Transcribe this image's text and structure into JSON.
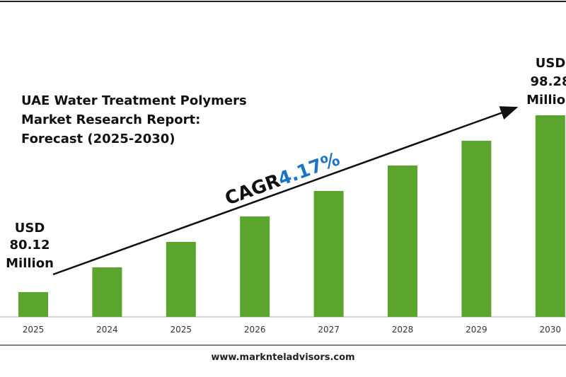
{
  "chart_data": {
    "type": "bar",
    "title_lines": [
      "UAE Water Treatment Polymers",
      "Market Research Report:",
      "Forecast (2025-2030)"
    ],
    "categories": [
      "2025",
      "2024",
      "2025",
      "2026",
      "2027",
      "2028",
      "2029",
      "2030"
    ],
    "values": [
      35,
      70,
      106,
      142,
      178,
      214,
      249,
      285
    ],
    "ylim": [
      0,
      300
    ],
    "color": "#5ba52f",
    "start_label": [
      "USD",
      "80.12",
      "Million"
    ],
    "end_label": [
      "USD",
      "98.28",
      "Million"
    ],
    "cagr_label": "CAGR",
    "cagr_value": "4.17%",
    "cagr_color": "#1a75c4",
    "footer": "www.marknteladvisors.com"
  }
}
